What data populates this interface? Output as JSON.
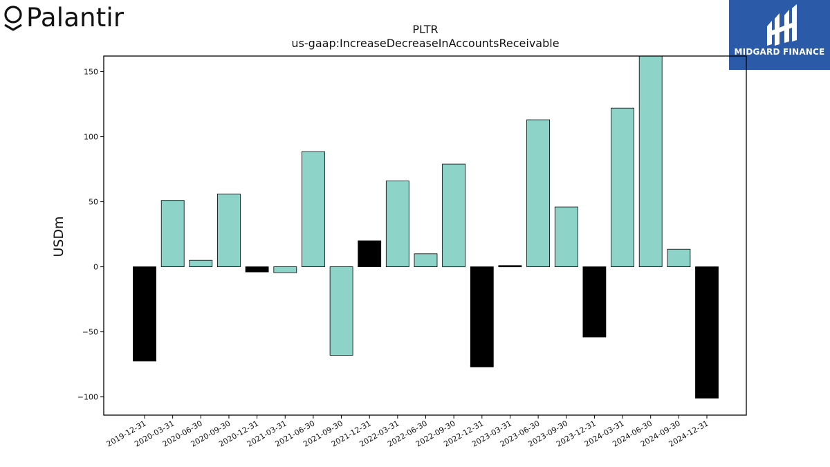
{
  "brand": {
    "name": "Palantir",
    "badge_text": "MIDGARD FINANCE",
    "badge_color": "#2b5aa8"
  },
  "chart_data": {
    "type": "bar",
    "title": "PLTR",
    "subtitle": "us-gaap:IncreaseDecreaseInAccountsReceivable",
    "xlabel": "",
    "ylabel": "USDm",
    "ylim": [
      -114,
      162
    ],
    "yticks": [
      -100,
      -50,
      0,
      50,
      100,
      150
    ],
    "grid": false,
    "colors": {
      "positive": "#8dd3c7",
      "highlight": "#000000"
    },
    "categories": [
      "2019-12-31",
      "2020-03-31",
      "2020-06-30",
      "2020-09-30",
      "2020-12-31",
      "2021-03-31",
      "2021-06-30",
      "2021-09-30",
      "2021-12-31",
      "2022-03-31",
      "2022-06-30",
      "2022-09-30",
      "2022-12-31",
      "2023-03-31",
      "2023-06-30",
      "2023-09-30",
      "2023-12-31",
      "2024-03-31",
      "2024-06-30",
      "2024-09-30",
      "2024-12-31"
    ],
    "values": [
      -72.5,
      51,
      5,
      56,
      -4,
      -4.5,
      88.5,
      -68,
      20,
      66,
      10,
      79,
      -77,
      1,
      113,
      46,
      -54,
      122,
      162,
      13.5,
      -101
    ],
    "highlight": [
      true,
      false,
      false,
      false,
      true,
      false,
      false,
      false,
      true,
      false,
      false,
      false,
      true,
      true,
      false,
      false,
      true,
      false,
      false,
      false,
      true
    ]
  }
}
